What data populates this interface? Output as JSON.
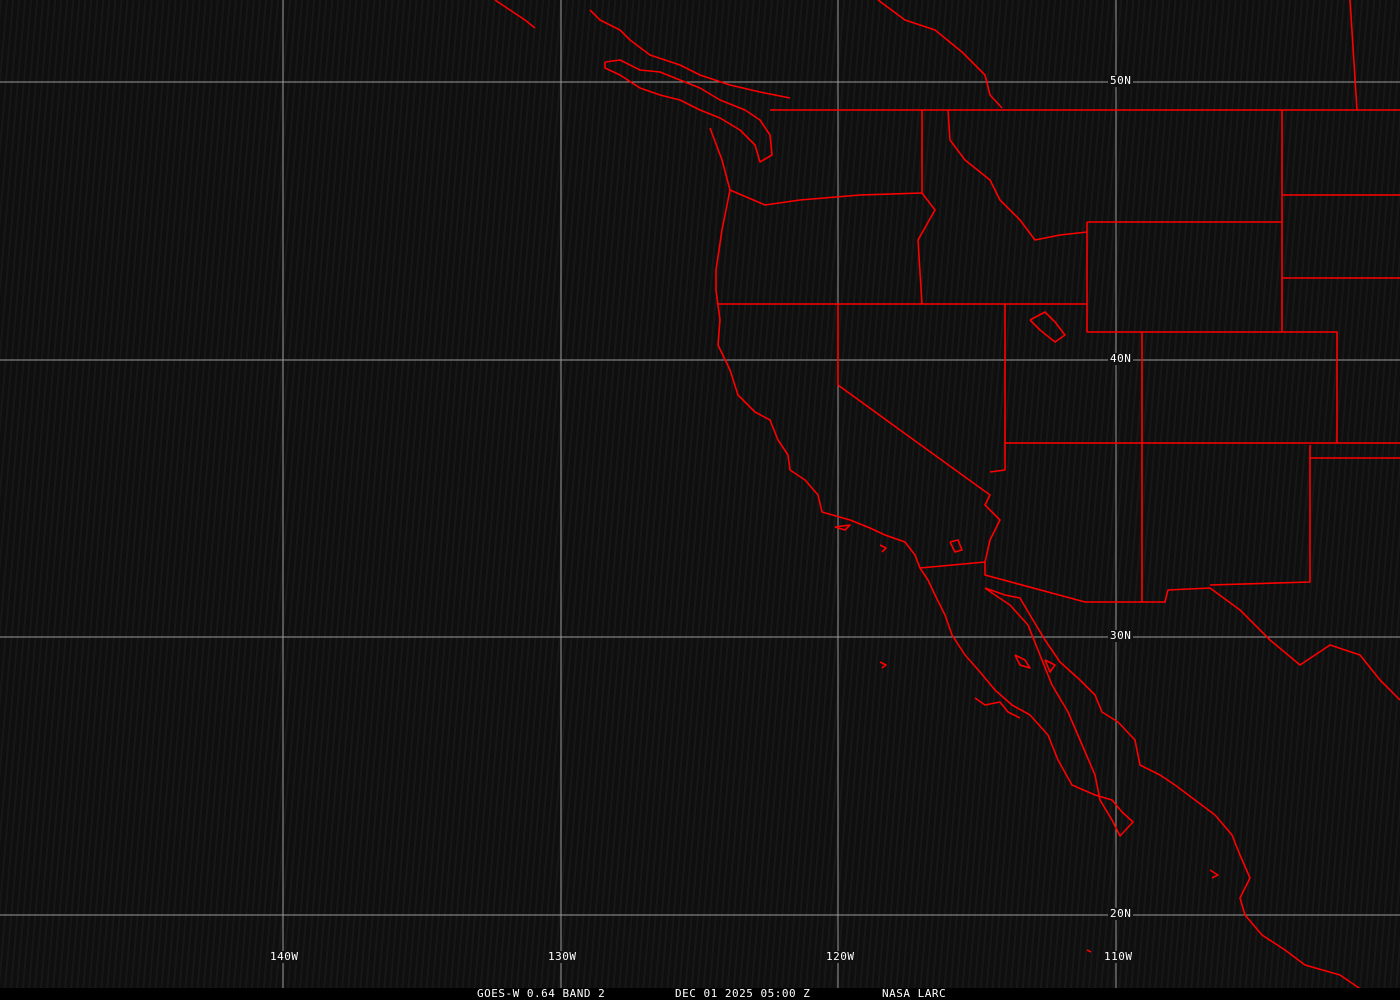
{
  "map": {
    "lat_labels": [
      "50N",
      "40N",
      "30N",
      "20N"
    ],
    "lon_labels": [
      "140W",
      "130W",
      "120W",
      "110W"
    ],
    "colors": {
      "boundaries": "#ff0000",
      "grid": "#9a9a9a",
      "background": "#0f0f0f",
      "text": "#ffffff"
    }
  },
  "caption": {
    "product": "GOES-W 0.64 BAND 2",
    "datetime": "DEC 01 2025 05:00 Z",
    "source": "NASA LARC"
  }
}
